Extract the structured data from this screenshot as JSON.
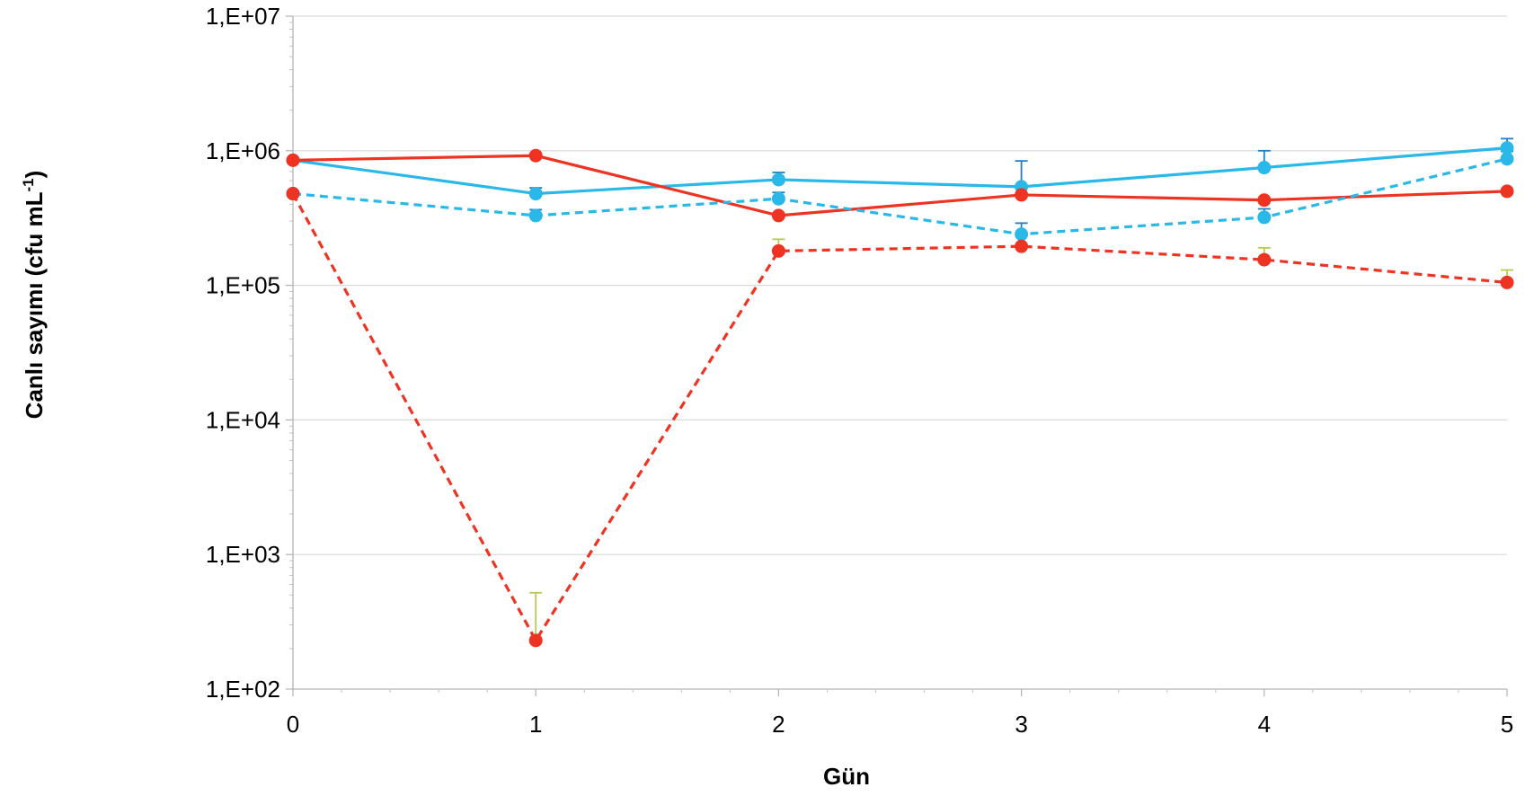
{
  "chart_data": {
    "type": "line",
    "xlabel": "Gün",
    "ylabel": "Canlı sayımı (cfu mL",
    "ylabel_sup": "-1",
    "ylabel_close": ")",
    "y_scale": "log",
    "ylim": [
      100,
      10000000
    ],
    "xlim": [
      0,
      5
    ],
    "x": [
      0,
      1,
      2,
      3,
      4,
      5
    ],
    "x_tick_labels": [
      "0",
      "1",
      "2",
      "3",
      "4",
      "5"
    ],
    "y_tick_values": [
      100,
      1000,
      10000,
      100000,
      1000000,
      10000000
    ],
    "y_tick_labels": [
      "1,E+02",
      "1,E+03",
      "1,E+04",
      "1,E+05",
      "1,E+06",
      "1,E+07"
    ],
    "grid": true,
    "series": [
      {
        "values": [
          850000,
          480000,
          610000,
          540000,
          750000,
          1050000
        ],
        "err": [
          null,
          50000,
          80000,
          300000,
          250000,
          180000
        ],
        "color": "#29b8e8",
        "err_color": "#1f7fc9",
        "dash": "solid"
      },
      {
        "values": [
          850000,
          920000,
          330000,
          470000,
          430000,
          500000
        ],
        "err": [
          null,
          null,
          null,
          null,
          null,
          null
        ],
        "color": "#ee3322",
        "err_color": "#ee3322",
        "dash": "solid"
      },
      {
        "values": [
          480000,
          330000,
          440000,
          240000,
          320000,
          870000
        ],
        "err": [
          null,
          35000,
          50000,
          50000,
          50000,
          120000
        ],
        "color": "#29b8e8",
        "err_color": "#1f7fc9",
        "dash": "dashed"
      },
      {
        "values": [
          480000,
          230,
          180000,
          195000,
          155000,
          105000
        ],
        "err": [
          null,
          290,
          40000,
          40000,
          35000,
          25000
        ],
        "color": "#ee3322",
        "err_color": "#b5cc52",
        "dash": "dashed"
      }
    ]
  }
}
